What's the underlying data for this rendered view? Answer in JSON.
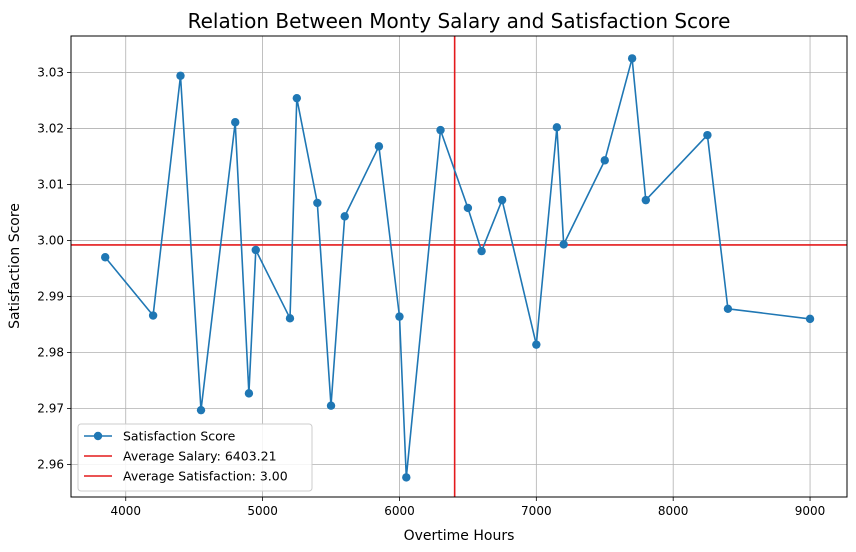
{
  "chart_data": {
    "type": "line",
    "title": "Relation Between Monty Salary and Satisfaction Score",
    "xlabel": "Overtime Hours",
    "ylabel": "Satisfaction Score",
    "xlim": [
      3600,
      9270
    ],
    "ylim": [
      2.9542,
      3.0365
    ],
    "xticks": [
      4000,
      5000,
      6000,
      7000,
      8000,
      9000
    ],
    "yticks": [
      2.96,
      2.97,
      2.98,
      2.99,
      3.0,
      3.01,
      3.02,
      3.03
    ],
    "ytick_labels": [
      "2.96",
      "2.97",
      "2.98",
      "2.99",
      "3.00",
      "3.01",
      "3.02",
      "3.03"
    ],
    "grid": true,
    "legend_position": "lower-left",
    "series": [
      {
        "name": "Satisfaction Score",
        "color": "#1f77b4",
        "x": [
          3850,
          4200,
          4400,
          4550,
          4800,
          4900,
          4950,
          5200,
          5250,
          5400,
          5500,
          5600,
          5850,
          6000,
          6050,
          6300,
          6500,
          6600,
          6750,
          7000,
          7150,
          7200,
          7500,
          7700,
          7800,
          8250,
          8400,
          9000
        ],
        "y": [
          2.997,
          2.9866,
          3.0294,
          2.9697,
          3.0211,
          2.9727,
          2.9983,
          2.9861,
          3.0254,
          3.0067,
          2.9705,
          3.0043,
          3.0168,
          2.9864,
          2.9577,
          3.0197,
          3.0058,
          2.9981,
          3.0072,
          2.9814,
          3.0202,
          2.9993,
          3.0143,
          3.0325,
          3.0072,
          3.0188,
          2.9878,
          2.986
        ]
      }
    ],
    "reference_lines": [
      {
        "orientation": "vertical",
        "value": 6403.21,
        "label": "Average Salary: 6403.21",
        "color": "#e41a1c"
      },
      {
        "orientation": "horizontal",
        "value": 2.9992,
        "label": "Average Satisfaction: 3.00",
        "color": "#e41a1c"
      }
    ]
  }
}
